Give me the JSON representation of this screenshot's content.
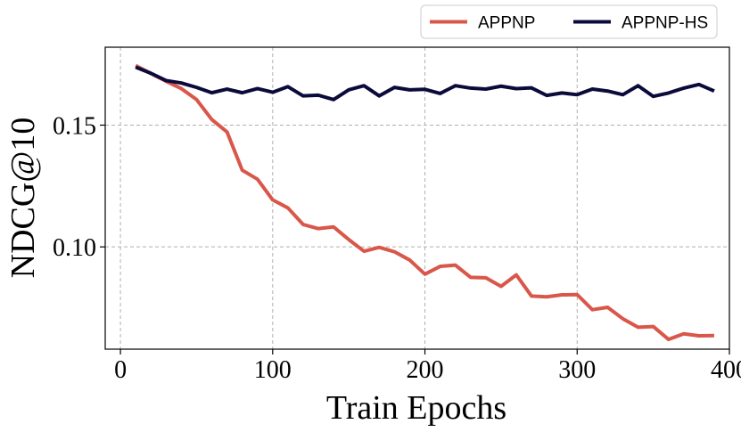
{
  "chart_data": {
    "type": "line",
    "title": "",
    "xlabel": "Train Epochs",
    "ylabel": "NDCG@10",
    "xlim": [
      -10,
      400
    ],
    "ylim": [
      0.058,
      0.182
    ],
    "xticks": [
      0,
      100,
      200,
      300,
      400
    ],
    "xtick_labels": [
      "0",
      "100",
      "200",
      "300",
      "400"
    ],
    "yticks": [
      0.1,
      0.15
    ],
    "ytick_labels": [
      "0.10",
      "0.15"
    ],
    "grid": true,
    "legend_position": "top-right-outside",
    "x": [
      10,
      20,
      30,
      40,
      50,
      60,
      70,
      80,
      90,
      100,
      110,
      120,
      130,
      140,
      150,
      160,
      170,
      180,
      190,
      200,
      210,
      220,
      230,
      240,
      250,
      260,
      270,
      280,
      290,
      300,
      310,
      320,
      330,
      340,
      350,
      360,
      370,
      380,
      390
    ],
    "series": [
      {
        "name": "APPNP",
        "color": "#d9574a",
        "values": [
          0.1745,
          0.1712,
          0.168,
          0.165,
          0.1605,
          0.1523,
          0.1472,
          0.1315,
          0.1278,
          0.1193,
          0.116,
          0.1092,
          0.1075,
          0.1082,
          0.103,
          0.0982,
          0.0998,
          0.098,
          0.0946,
          0.0888,
          0.092,
          0.0925,
          0.0875,
          0.0873,
          0.0838,
          0.0885,
          0.0798,
          0.0795,
          0.0803,
          0.0804,
          0.0742,
          0.0752,
          0.0705,
          0.067,
          0.0673,
          0.062,
          0.0643,
          0.0635,
          0.0636
        ]
      },
      {
        "name": "APPNP-HS",
        "color": "#0b0b3b",
        "values": [
          0.1738,
          0.1713,
          0.1683,
          0.1673,
          0.1655,
          0.1633,
          0.1648,
          0.1633,
          0.165,
          0.1635,
          0.1658,
          0.162,
          0.1623,
          0.1605,
          0.1645,
          0.1662,
          0.162,
          0.1655,
          0.1645,
          0.1647,
          0.163,
          0.1662,
          0.1652,
          0.1648,
          0.166,
          0.165,
          0.1653,
          0.1622,
          0.1632,
          0.1625,
          0.1648,
          0.164,
          0.1625,
          0.1662,
          0.1618,
          0.1632,
          0.1652,
          0.1667,
          0.164
        ]
      }
    ]
  }
}
